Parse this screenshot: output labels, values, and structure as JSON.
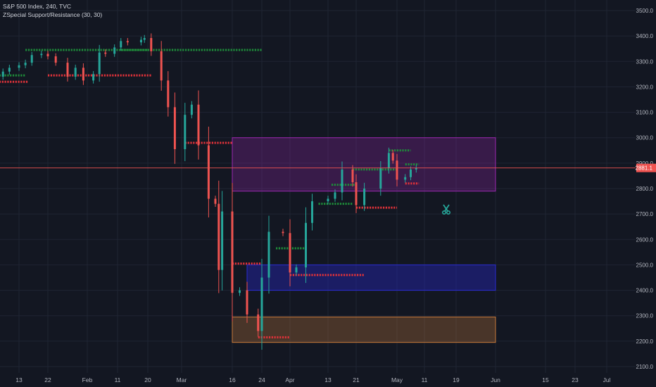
{
  "header": {
    "symbol_line": "S&P 500 Index, 240, TVC",
    "indicator_line": "ZSpecial Support/Resistance (30, 30)"
  },
  "price_scale": {
    "ticks": [
      "3500.0",
      "3400.0",
      "3300.0",
      "3200.0",
      "3100.0",
      "3000.0",
      "2900.0",
      "2800.0",
      "2700.0",
      "2600.0",
      "2500.0",
      "2400.0",
      "2300.0",
      "2200.0",
      "2100.0"
    ],
    "last_price_label": "2881.1"
  },
  "time_scale": {
    "labels": [
      "13",
      "22",
      "Feb",
      "11",
      "20",
      "Mar",
      "16",
      "24",
      "Apr",
      "13",
      "21",
      "May",
      "11",
      "19",
      "Jun",
      "15",
      "23",
      "Jul"
    ]
  },
  "colors": {
    "background": "#131722",
    "grid": "#1f2433",
    "up": "#26a69a",
    "down": "#ef5350",
    "support_dots": "#1e8c3a",
    "resistance_dots": "#e0323a",
    "zone_purple": "#9c27b0",
    "zone_blue": "#2a2ad0",
    "zone_orange": "#c77a3a",
    "last_price": "#ef5350"
  },
  "chart_data": {
    "type": "candlestick",
    "x_axis": "date (2020)",
    "y_axis": "S&P 500 price",
    "ylim": [
      2080,
      3520
    ],
    "last_price": 2881.1,
    "candles_approx": [
      {
        "x": "Jan 6",
        "o": 3220,
        "c": 3240
      },
      {
        "x": "Jan 8",
        "o": 3240,
        "c": 3260
      },
      {
        "x": "Jan 10",
        "o": 3260,
        "c": 3275
      },
      {
        "x": "Jan 13",
        "o": 3275,
        "c": 3285
      },
      {
        "x": "Jan 15",
        "o": 3285,
        "c": 3295
      },
      {
        "x": "Jan 17",
        "o": 3295,
        "c": 3325
      },
      {
        "x": "Jan 20",
        "o": 3325,
        "c": 3330
      },
      {
        "x": "Jan 22",
        "o": 3330,
        "c": 3320
      },
      {
        "x": "Jan 24",
        "o": 3320,
        "c": 3295
      },
      {
        "x": "Jan 27",
        "o": 3295,
        "c": 3240
      },
      {
        "x": "Jan 29",
        "o": 3240,
        "c": 3275
      },
      {
        "x": "Jan 31",
        "o": 3275,
        "c": 3225
      },
      {
        "x": "Feb 3",
        "o": 3225,
        "c": 3250
      },
      {
        "x": "Feb 5",
        "o": 3250,
        "c": 3335
      },
      {
        "x": "Feb 7",
        "o": 3335,
        "c": 3330
      },
      {
        "x": "Feb 10",
        "o": 3330,
        "c": 3355
      },
      {
        "x": "Feb 12",
        "o": 3355,
        "c": 3380
      },
      {
        "x": "Feb 14",
        "o": 3380,
        "c": 3375
      },
      {
        "x": "Feb 18",
        "o": 3375,
        "c": 3385
      },
      {
        "x": "Feb 19",
        "o": 3385,
        "c": 3392
      },
      {
        "x": "Feb 21",
        "o": 3392,
        "c": 3340
      },
      {
        "x": "Feb 24",
        "o": 3340,
        "c": 3225
      },
      {
        "x": "Feb 26",
        "o": 3225,
        "c": 3120
      },
      {
        "x": "Feb 28",
        "o": 3120,
        "c": 2955
      },
      {
        "x": "Mar 2",
        "o": 2955,
        "c": 3090
      },
      {
        "x": "Mar 4",
        "o": 3090,
        "c": 3130
      },
      {
        "x": "Mar 6",
        "o": 3130,
        "c": 2970
      },
      {
        "x": "Mar 9",
        "o": 2970,
        "c": 2760
      },
      {
        "x": "Mar 11",
        "o": 2760,
        "c": 2740
      },
      {
        "x": "Mar 12",
        "o": 2740,
        "c": 2480
      },
      {
        "x": "Mar 13",
        "o": 2480,
        "c": 2710
      },
      {
        "x": "Mar 16",
        "o": 2710,
        "c": 2390
      },
      {
        "x": "Mar 18",
        "o": 2390,
        "c": 2400
      },
      {
        "x": "Mar 20",
        "o": 2400,
        "c": 2305
      },
      {
        "x": "Mar 23",
        "o": 2305,
        "c": 2240
      },
      {
        "x": "Mar 24",
        "o": 2240,
        "c": 2450
      },
      {
        "x": "Mar 26",
        "o": 2450,
        "c": 2630
      },
      {
        "x": "Mar 30",
        "o": 2630,
        "c": 2625
      },
      {
        "x": "Apr 1",
        "o": 2625,
        "c": 2470
      },
      {
        "x": "Apr 3",
        "o": 2470,
        "c": 2490
      },
      {
        "x": "Apr 6",
        "o": 2490,
        "c": 2665
      },
      {
        "x": "Apr 8",
        "o": 2665,
        "c": 2750
      },
      {
        "x": "Apr 13",
        "o": 2750,
        "c": 2760
      },
      {
        "x": "Apr 15",
        "o": 2760,
        "c": 2785
      },
      {
        "x": "Apr 17",
        "o": 2785,
        "c": 2875
      },
      {
        "x": "Apr 20",
        "o": 2875,
        "c": 2825
      },
      {
        "x": "Apr 21",
        "o": 2825,
        "c": 2735
      },
      {
        "x": "Apr 23",
        "o": 2735,
        "c": 2800
      },
      {
        "x": "Apr 27",
        "o": 2800,
        "c": 2880
      },
      {
        "x": "Apr 29",
        "o": 2880,
        "c": 2940
      },
      {
        "x": "Apr 30",
        "o": 2940,
        "c": 2910
      },
      {
        "x": "May 1",
        "o": 2910,
        "c": 2835
      },
      {
        "x": "May 4",
        "o": 2835,
        "c": 2845
      },
      {
        "x": "May 6",
        "o": 2845,
        "c": 2875
      },
      {
        "x": "May 8",
        "o": 2875,
        "c": 2881
      }
    ],
    "zones": [
      {
        "from": "Mar 16",
        "to": "Jun 1",
        "top": 3000,
        "bottom": 2790,
        "color": "purple"
      },
      {
        "from": "Mar 20",
        "to": "Jun 1",
        "top": 2500,
        "bottom": 2400,
        "color": "blue"
      },
      {
        "from": "Mar 16",
        "to": "Jun 1",
        "top": 2295,
        "bottom": 2195,
        "color": "orange"
      }
    ],
    "support_levels": [
      {
        "from": "Jan 6",
        "to": "Jan 15",
        "y": 3245
      },
      {
        "from": "Jan 15",
        "to": "Feb 20",
        "y": 3345
      },
      {
        "from": "Feb 12",
        "to": "Mar 24",
        "y": 3345
      },
      {
        "from": "Mar 28",
        "to": "Apr 6",
        "y": 2565
      },
      {
        "from": "Apr 10",
        "to": "Apr 20",
        "y": 2740
      },
      {
        "from": "Apr 14",
        "to": "Apr 21",
        "y": 2815
      },
      {
        "from": "Apr 20",
        "to": "May 1",
        "y": 2875
      },
      {
        "from": "Apr 29",
        "to": "May 6",
        "y": 2950
      },
      {
        "from": "May 4",
        "to": "May 9",
        "y": 2895
      }
    ],
    "resistance_levels": [
      {
        "from": "Jan 6",
        "to": "Jan 16",
        "y": 3220
      },
      {
        "from": "Jan 22",
        "to": "Feb 21",
        "y": 3245
      },
      {
        "from": "Mar 2",
        "to": "Mar 16",
        "y": 2980
      },
      {
        "from": "Mar 16",
        "to": "Mar 24",
        "y": 2505
      },
      {
        "from": "Apr 1",
        "to": "Apr 23",
        "y": 2460
      },
      {
        "from": "Mar 23",
        "to": "Apr 1",
        "y": 2215
      },
      {
        "from": "Apr 21",
        "to": "May 1",
        "y": 2725
      },
      {
        "from": "May 4",
        "to": "May 9",
        "y": 2820
      }
    ]
  }
}
